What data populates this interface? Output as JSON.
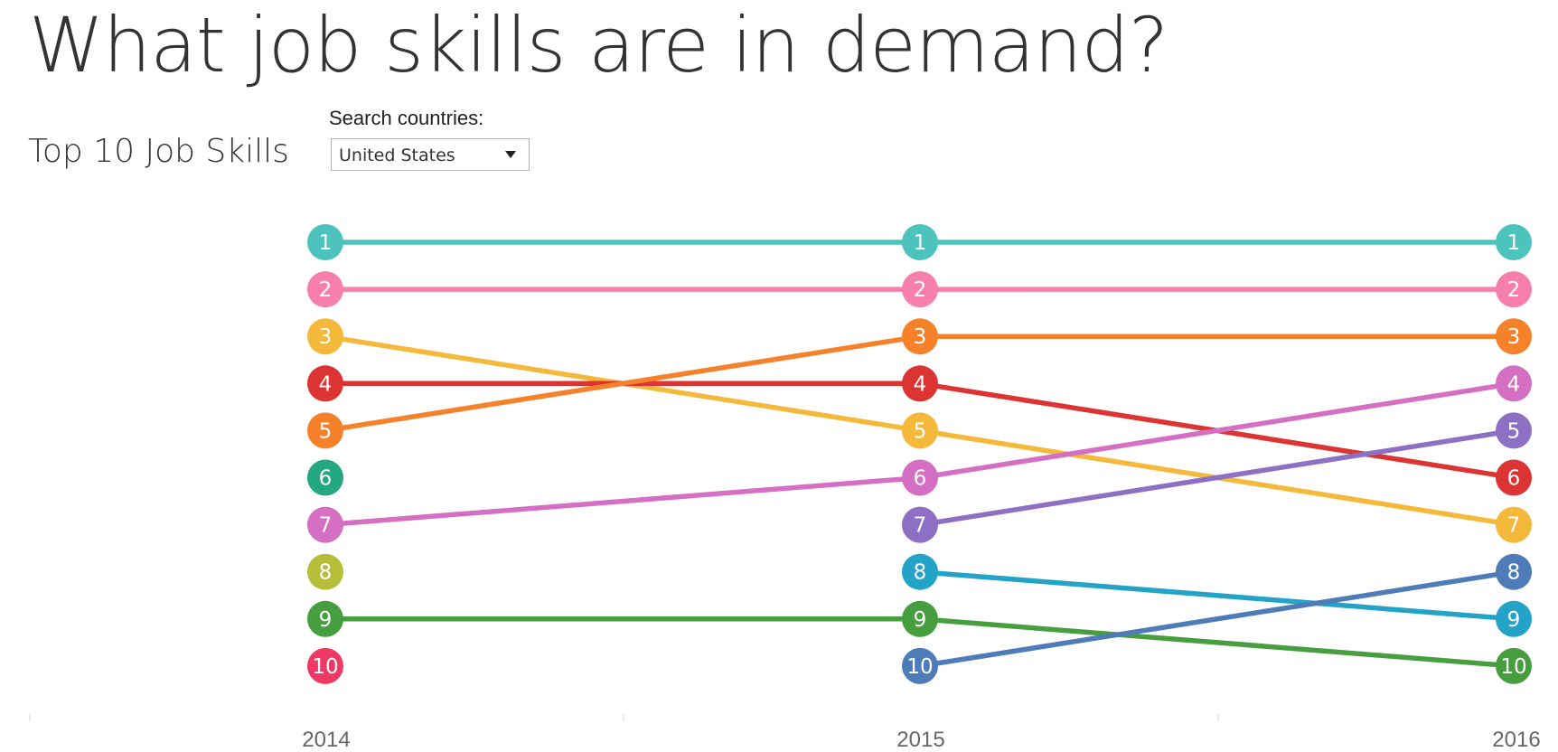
{
  "title": "What job skills are in demand?",
  "subtitle": "Top 10 Job Skills",
  "filter": {
    "label": "Search countries:",
    "selected": "United States"
  },
  "chart_data": {
    "type": "line",
    "chart_kind": "bump chart (rank over time)",
    "x": [
      2014,
      2015,
      2016
    ],
    "x_tick_labels": [
      "2014",
      "2015",
      "2016"
    ],
    "y_scale": "rank, 1 at top, 10 at bottom",
    "ylim": [
      1,
      10
    ],
    "grid": false,
    "legend": "none",
    "series": [
      {
        "color": "#4dc3be",
        "ranks": [
          1,
          1,
          1
        ]
      },
      {
        "color": "#f77fac",
        "ranks": [
          2,
          2,
          2
        ]
      },
      {
        "color": "#f4b83a",
        "ranks": [
          3,
          5,
          7
        ]
      },
      {
        "color": "#dc3333",
        "ranks": [
          4,
          4,
          6
        ]
      },
      {
        "color": "#f5822a",
        "ranks": [
          5,
          3,
          3
        ]
      },
      {
        "color": "#24a881",
        "ranks": [
          6,
          null,
          null
        ]
      },
      {
        "color": "#d46fc3",
        "ranks": [
          7,
          6,
          4
        ]
      },
      {
        "color": "#b7bd38",
        "ranks": [
          8,
          null,
          null
        ]
      },
      {
        "color": "#479e3f",
        "ranks": [
          9,
          9,
          10
        ]
      },
      {
        "color": "#ef3964",
        "ranks": [
          10,
          null,
          null
        ]
      },
      {
        "color": "#8d6fc4",
        "ranks": [
          null,
          7,
          5
        ]
      },
      {
        "color": "#23a3c8",
        "ranks": [
          null,
          8,
          9
        ]
      },
      {
        "color": "#4d7cb9",
        "ranks": [
          null,
          10,
          8
        ]
      }
    ]
  }
}
